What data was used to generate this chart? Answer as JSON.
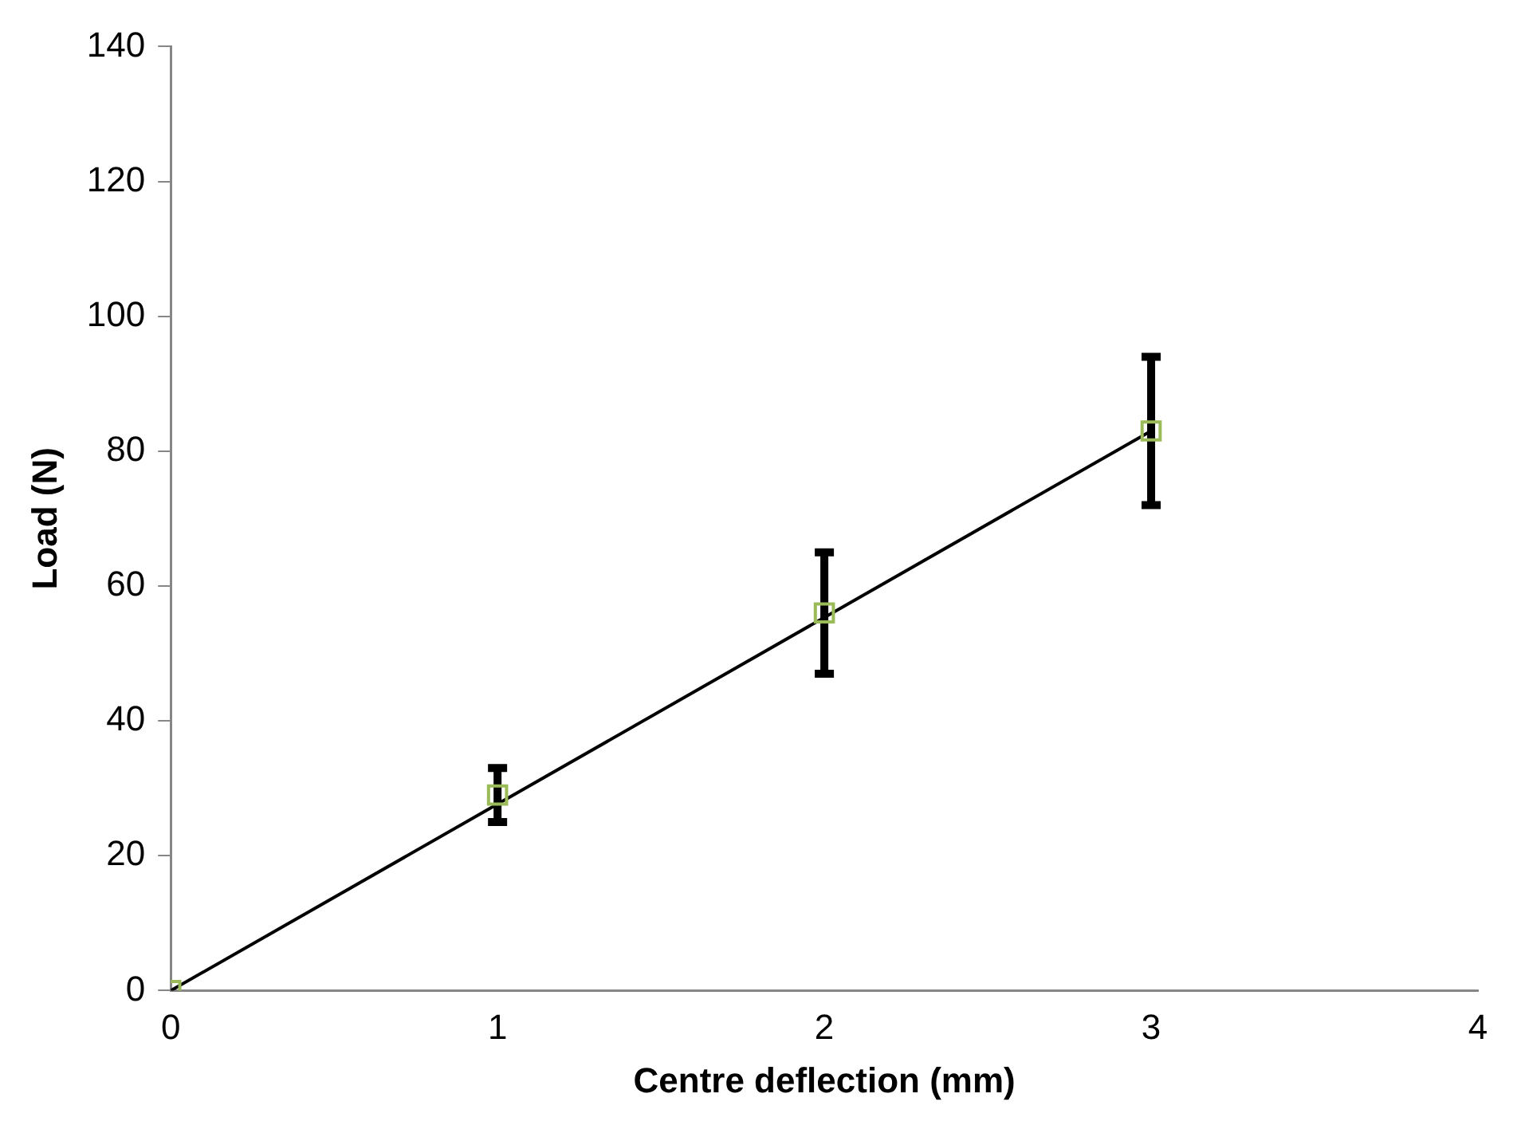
{
  "chart_data": {
    "type": "scatter",
    "xlabel": "Centre deflection (mm)",
    "ylabel": "Load (N)",
    "xlim": [
      0,
      4
    ],
    "xticks": [
      0,
      1,
      2,
      3,
      4
    ],
    "ylim": [
      0,
      140
    ],
    "yticks": [
      0,
      20,
      40,
      60,
      80,
      100,
      120,
      140
    ],
    "grid": false,
    "legend": false,
    "series": [
      {
        "type": "scatter",
        "color": "#9bbb59",
        "marker": "square",
        "x": [
          0,
          1,
          2,
          3
        ],
        "values": [
          0,
          29,
          56,
          83
        ],
        "errors": [
          null,
          4,
          9,
          11
        ]
      },
      {
        "type": "line",
        "color": "#000000",
        "marker": "none",
        "x": [
          0,
          3
        ],
        "values": [
          0,
          83
        ]
      }
    ]
  }
}
